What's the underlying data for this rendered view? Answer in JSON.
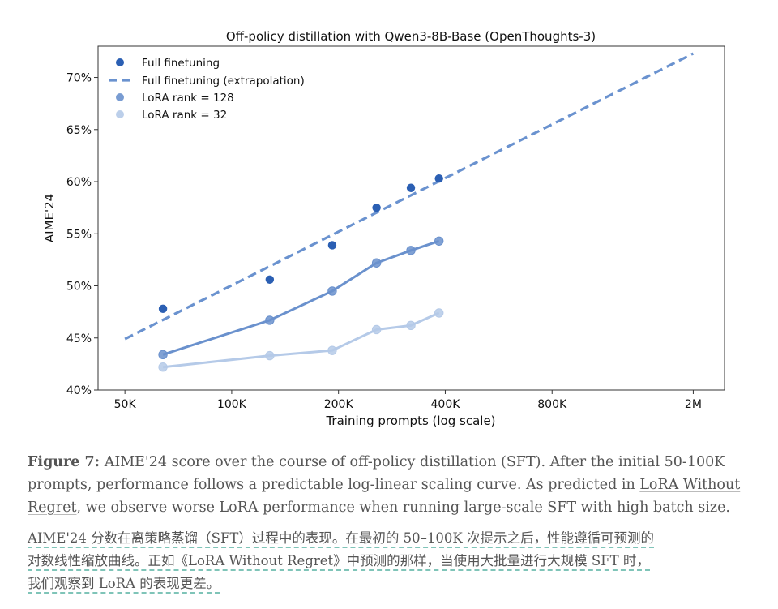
{
  "chart_data": {
    "type": "scatter",
    "title": "Off-policy distillation with Qwen3-8B-Base (OpenThoughts-3)",
    "xlabel": "Training prompts (log scale)",
    "ylabel": "AIME'24",
    "xscale": "log",
    "xlim": [
      42000,
      2450000
    ],
    "ylim": [
      40,
      73
    ],
    "x_ticks": [
      50000,
      100000,
      200000,
      400000,
      800000,
      2000000
    ],
    "x_tick_labels": [
      "50K",
      "100K",
      "200K",
      "400K",
      "800K",
      "2M"
    ],
    "y_ticks": [
      40,
      45,
      50,
      55,
      60,
      65,
      70
    ],
    "y_tick_labels": [
      "40%",
      "45%",
      "50%",
      "55%",
      "60%",
      "65%",
      "70%"
    ],
    "grid": false,
    "legend_position": "top-left",
    "x": [
      64000,
      128000,
      192000,
      256000,
      320000,
      384000
    ],
    "series": [
      {
        "name": "Full finetuning",
        "style": "markers",
        "color": "#2b5fb3",
        "values": [
          47.8,
          50.6,
          53.9,
          57.5,
          59.4,
          60.3
        ]
      },
      {
        "name": "Full finetuning (extrapolation)",
        "style": "dashed-line",
        "color": "#6a92cf",
        "x": [
          50000,
          2000000
        ],
        "values": [
          44.9,
          72.3
        ]
      },
      {
        "name": "LoRA rank = 128",
        "style": "line-markers",
        "color": "#6a91cd",
        "values": [
          43.4,
          46.7,
          49.5,
          52.2,
          53.4,
          54.3
        ]
      },
      {
        "name": "LoRA rank = 32",
        "style": "line-markers",
        "color": "#b5cae8",
        "values": [
          42.2,
          43.3,
          43.8,
          45.8,
          46.2,
          47.4
        ]
      }
    ]
  },
  "caption": {
    "label": "Figure 7:",
    "text_before_link": " AIME'24 score over the course of off-policy distillation (SFT). After the initial 50-100K prompts, performance follows a predictable log-linear scaling curve. As predicted in ",
    "link_text": "LoRA Without Regret",
    "text_after_link": ", we observe worse LoRA performance when running large-scale SFT with high batch size."
  },
  "translation": {
    "lines": [
      "AIME'24 分数在离策略蒸馏（SFT）过程中的表现。在最初的 50–100K 次提示之后，性能遵循可预测的",
      "对数线性缩放曲线。正如《LoRA Without Regret》中预测的那样，当使用大批量进行大规模 SFT 时，",
      "我们观察到 LoRA 的表现更差。"
    ]
  }
}
